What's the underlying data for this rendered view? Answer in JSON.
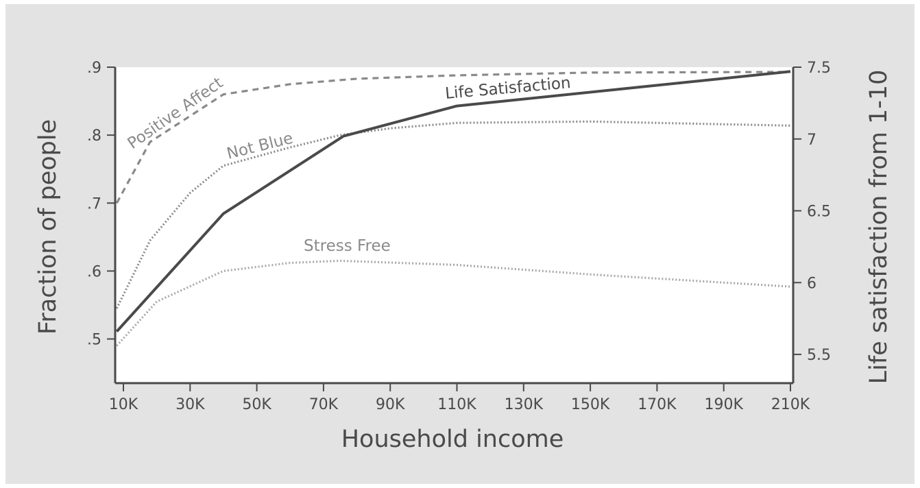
{
  "chart_data": {
    "type": "line",
    "xlabel": "Household income",
    "ylabel_left": "Fraction of people",
    "ylabel_right": "Life satisfaction from 1-10",
    "x_ticks": [
      "10K",
      "30K",
      "50K",
      "70K",
      "90K",
      "110K",
      "130K",
      "150K",
      "170K",
      "190K",
      "210K"
    ],
    "y_left_ticks": [
      ".5",
      ".6",
      ".7",
      ".8",
      ".9"
    ],
    "y_right_ticks": [
      "5.5",
      "6",
      "6.5",
      "7",
      "7.5"
    ],
    "xlim": [
      8,
      210
    ],
    "ylim_left": [
      0.435,
      0.9
    ],
    "ylim_right": [
      5.3,
      7.5
    ],
    "grid": false,
    "series": [
      {
        "name": "Positive Affect",
        "axis": "left",
        "style": "dashed",
        "color": "#8a8a8a",
        "points": [
          [
            8,
            0.7
          ],
          [
            18,
            0.79
          ],
          [
            40,
            0.86
          ],
          [
            60,
            0.875
          ],
          [
            80,
            0.883
          ],
          [
            110,
            0.888
          ],
          [
            150,
            0.892
          ],
          [
            210,
            0.893
          ]
        ]
      },
      {
        "name": "Not Blue",
        "axis": "left",
        "style": "dotted",
        "color": "#8a8a8a",
        "points": [
          [
            8,
            0.545
          ],
          [
            18,
            0.645
          ],
          [
            30,
            0.715
          ],
          [
            40,
            0.755
          ],
          [
            60,
            0.782
          ],
          [
            75,
            0.8
          ],
          [
            90,
            0.81
          ],
          [
            110,
            0.818
          ],
          [
            150,
            0.82
          ],
          [
            210,
            0.814
          ]
        ]
      },
      {
        "name": "Life Satisfaction",
        "axis": "right",
        "style": "solid",
        "color": "#4a4a4a",
        "points": [
          [
            8,
            5.66
          ],
          [
            40,
            6.48
          ],
          [
            76,
            7.02
          ],
          [
            110,
            7.23
          ],
          [
            210,
            7.47
          ]
        ]
      },
      {
        "name": "Stress Free",
        "axis": "left",
        "style": "dotted",
        "color": "#a8a8a8",
        "points": [
          [
            8,
            0.49
          ],
          [
            20,
            0.555
          ],
          [
            40,
            0.6
          ],
          [
            60,
            0.612
          ],
          [
            75,
            0.615
          ],
          [
            110,
            0.609
          ],
          [
            150,
            0.595
          ],
          [
            210,
            0.577
          ]
        ]
      }
    ]
  },
  "colors": {
    "background": "#e3e3e4",
    "plot_area": "#ffffff",
    "axis": "#4a4a4a",
    "text": "#4a4a4a",
    "series_gray": "#8a8a8a",
    "series_light": "#a8a8a8"
  }
}
